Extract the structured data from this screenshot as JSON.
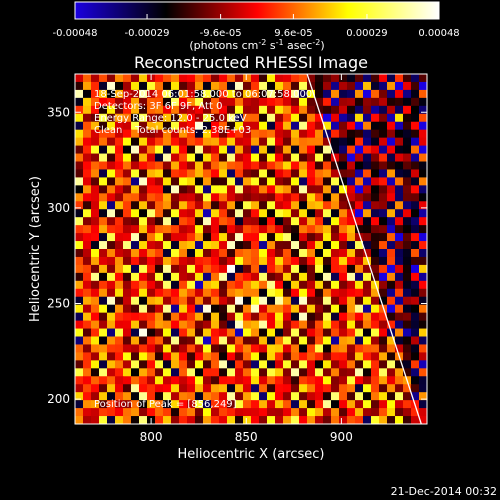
{
  "colorbar": {
    "ticks": [
      "-0.00048",
      "-0.00029",
      "-9.6e-05",
      "9.6e-05",
      "0.00029",
      "0.00048"
    ],
    "tick_values": [
      -0.00048,
      -0.00029,
      -9.6e-05,
      9.6e-05,
      0.00029,
      0.00048
    ],
    "range": [
      -0.00048,
      0.00048
    ],
    "units_parts": [
      "(photons cm",
      "-2",
      " s",
      "-1",
      " asec",
      "-2",
      ")"
    ]
  },
  "chart_data": {
    "type": "heatmap",
    "title": "Reconstructed RHESSI Image",
    "xlabel": "Heliocentric X (arcsec)",
    "ylabel": "Heliocentric Y (arcsec)",
    "xlim": [
      760,
      945
    ],
    "ylim": [
      187,
      370
    ],
    "x_ticks": [
      800,
      850,
      900
    ],
    "y_ticks": [
      200,
      250,
      300,
      350
    ],
    "annotations": [
      "18-Sep-2014 06:01:58.000 to 06:07:58.000",
      "Detectors: 3F 6F 9F, Att 0",
      "Energy Range: 12.0 - 25.0 keV",
      "Clean    Total counts: 2.38E+03"
    ],
    "peak_label": "Position of Peak = [856,249]",
    "peak_position": [
      856,
      249
    ],
    "limb_line": [
      [
        882,
        370
      ],
      [
        942,
        187
      ]
    ],
    "colormap_stops": [
      "#1a00e0",
      "#000000",
      "#ff0000",
      "#ffff00",
      "#ffffff"
    ]
  },
  "footer": {
    "date": "21-Dec-2014 00:32"
  }
}
